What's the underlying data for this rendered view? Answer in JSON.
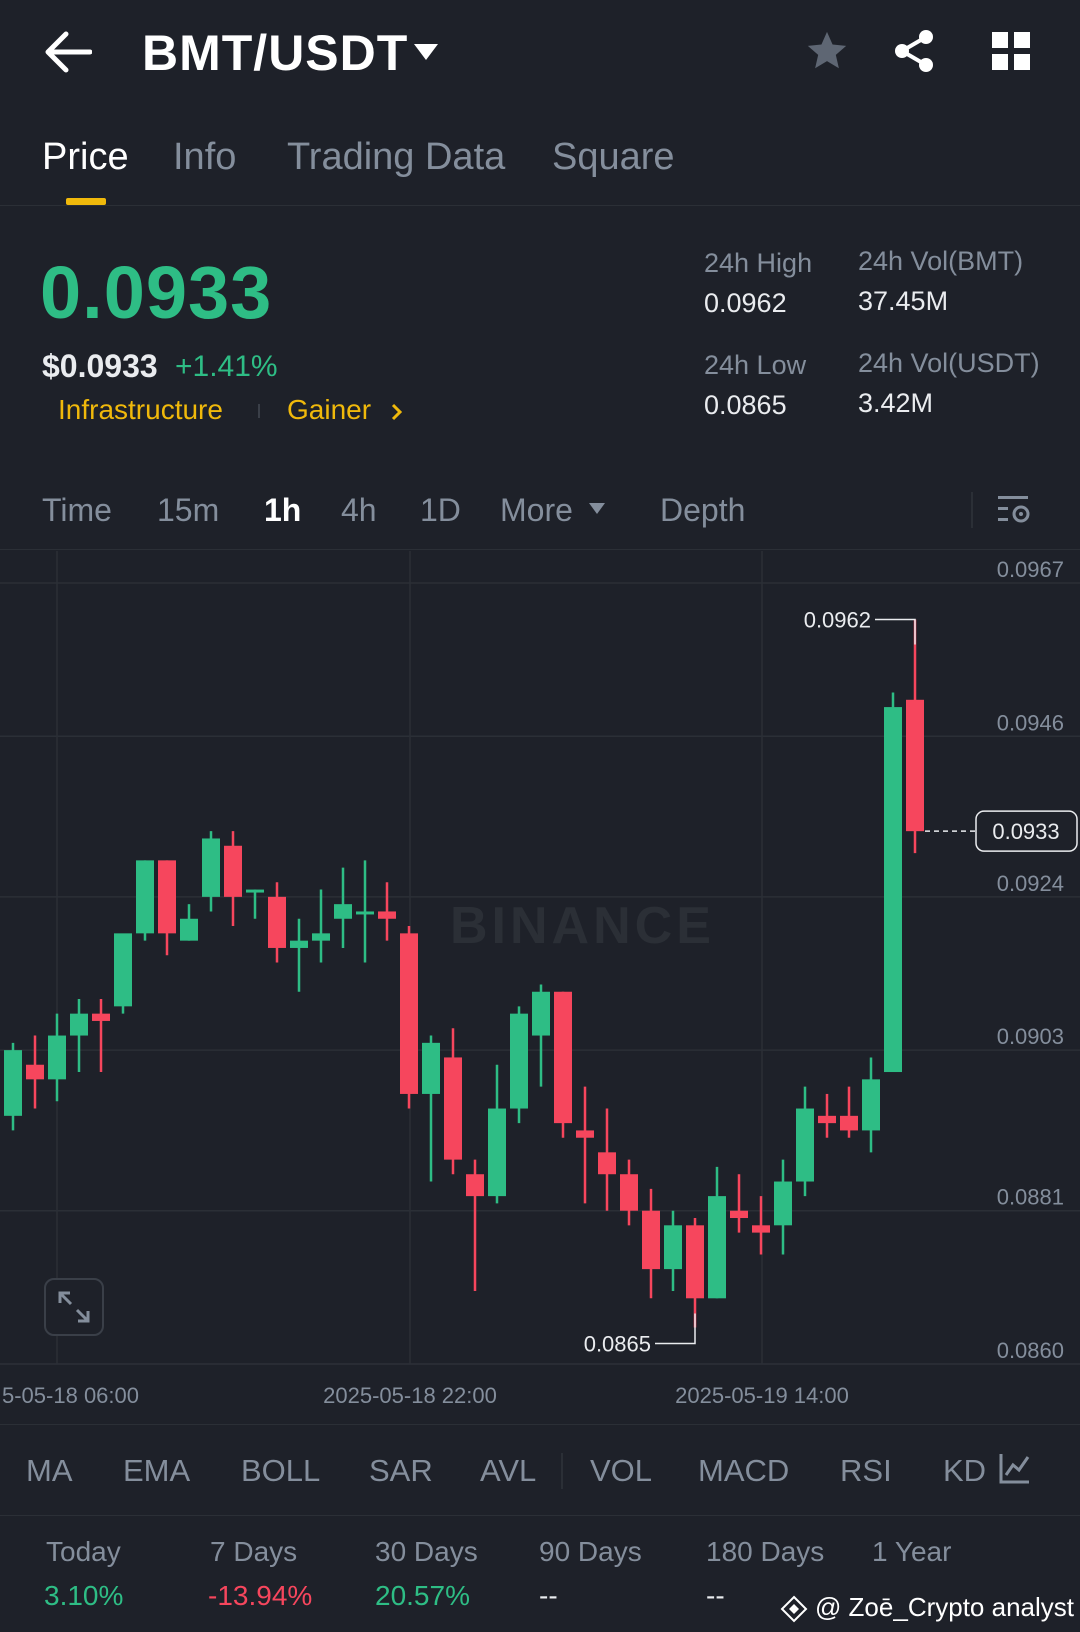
{
  "header": {
    "title": "BMT/USDT",
    "icons": [
      "back-arrow-icon",
      "chevron-down-icon",
      "star-icon",
      "share-icon",
      "grid-icon"
    ]
  },
  "tabs": [
    {
      "label": "Price",
      "active": true
    },
    {
      "label": "Info"
    },
    {
      "label": "Trading Data"
    },
    {
      "label": "Square"
    }
  ],
  "ticker": {
    "last_price": "0.0933",
    "usd_price": "$0.0933",
    "change_pct": "+1.41%",
    "tag1": "Infrastructure",
    "tag2": "Gainer",
    "high_label": "24h High",
    "high_value": "0.0962",
    "low_label": "24h Low",
    "low_value": "0.0865",
    "vol_base_label": "24h Vol(BMT)",
    "vol_base_value": "37.45M",
    "vol_quote_label": "24h Vol(USDT)",
    "vol_quote_value": "3.42M"
  },
  "timeframes": {
    "time": "Time",
    "m15": "15m",
    "h1": "1h",
    "h4": "4h",
    "d1": "1D",
    "more": "More",
    "depth": "Depth"
  },
  "chart_data": {
    "type": "candlestick",
    "watermark": "BINANCE",
    "y_ticks": [
      "0.0967",
      "0.0946",
      "0.0924",
      "0.0903",
      "0.0881",
      "0.0860"
    ],
    "ylim": [
      0.086,
      0.0967
    ],
    "x_ticks": [
      "5-05-18 06:00",
      "2025-05-18 22:00",
      "2025-05-19 14:00"
    ],
    "current_price_label": "0.0933",
    "high_marker": "0.0962",
    "low_marker": "0.0865",
    "candles": [
      {
        "o": 0.0894,
        "h": 0.0904,
        "l": 0.0892,
        "c": 0.0903
      },
      {
        "o": 0.0901,
        "h": 0.0905,
        "l": 0.0895,
        "c": 0.0899
      },
      {
        "o": 0.0899,
        "h": 0.0908,
        "l": 0.0896,
        "c": 0.0905
      },
      {
        "o": 0.0905,
        "h": 0.091,
        "l": 0.09,
        "c": 0.0908
      },
      {
        "o": 0.0908,
        "h": 0.091,
        "l": 0.09,
        "c": 0.0907
      },
      {
        "o": 0.0909,
        "h": 0.0918,
        "l": 0.0908,
        "c": 0.0919
      },
      {
        "o": 0.0919,
        "h": 0.0929,
        "l": 0.0918,
        "c": 0.0929
      },
      {
        "o": 0.0929,
        "h": 0.0929,
        "l": 0.0916,
        "c": 0.0919
      },
      {
        "o": 0.0918,
        "h": 0.0923,
        "l": 0.0918,
        "c": 0.0921
      },
      {
        "o": 0.0924,
        "h": 0.0933,
        "l": 0.0922,
        "c": 0.0932
      },
      {
        "o": 0.0931,
        "h": 0.0933,
        "l": 0.092,
        "c": 0.0924
      },
      {
        "o": 0.0925,
        "h": 0.0925,
        "l": 0.0921,
        "c": 0.0925
      },
      {
        "o": 0.0924,
        "h": 0.0926,
        "l": 0.0915,
        "c": 0.0917
      },
      {
        "o": 0.0917,
        "h": 0.0921,
        "l": 0.0911,
        "c": 0.0918
      },
      {
        "o": 0.0918,
        "h": 0.0925,
        "l": 0.0915,
        "c": 0.0919
      },
      {
        "o": 0.0921,
        "h": 0.0928,
        "l": 0.0917,
        "c": 0.0923
      },
      {
        "o": 0.0922,
        "h": 0.0929,
        "l": 0.0915,
        "c": 0.0922
      },
      {
        "o": 0.0922,
        "h": 0.0926,
        "l": 0.0918,
        "c": 0.0921
      },
      {
        "o": 0.0919,
        "h": 0.092,
        "l": 0.0895,
        "c": 0.0897
      },
      {
        "o": 0.0897,
        "h": 0.0905,
        "l": 0.0885,
        "c": 0.0904
      },
      {
        "o": 0.0902,
        "h": 0.0906,
        "l": 0.0886,
        "c": 0.0888
      },
      {
        "o": 0.0886,
        "h": 0.0888,
        "l": 0.087,
        "c": 0.0883
      },
      {
        "o": 0.0883,
        "h": 0.0901,
        "l": 0.0882,
        "c": 0.0895
      },
      {
        "o": 0.0895,
        "h": 0.0909,
        "l": 0.0893,
        "c": 0.0908
      },
      {
        "o": 0.0905,
        "h": 0.0912,
        "l": 0.0898,
        "c": 0.0911
      },
      {
        "o": 0.0911,
        "h": 0.0911,
        "l": 0.0891,
        "c": 0.0893
      },
      {
        "o": 0.0892,
        "h": 0.0898,
        "l": 0.0882,
        "c": 0.0891
      },
      {
        "o": 0.0889,
        "h": 0.0895,
        "l": 0.0881,
        "c": 0.0886
      },
      {
        "o": 0.0886,
        "h": 0.0888,
        "l": 0.0879,
        "c": 0.0881
      },
      {
        "o": 0.0881,
        "h": 0.0884,
        "l": 0.0869,
        "c": 0.0873
      },
      {
        "o": 0.0873,
        "h": 0.0881,
        "l": 0.087,
        "c": 0.0879
      },
      {
        "o": 0.0879,
        "h": 0.088,
        "l": 0.0865,
        "c": 0.0869
      },
      {
        "o": 0.0869,
        "h": 0.0887,
        "l": 0.0869,
        "c": 0.0883
      },
      {
        "o": 0.0881,
        "h": 0.0886,
        "l": 0.0878,
        "c": 0.088
      },
      {
        "o": 0.0879,
        "h": 0.0883,
        "l": 0.0875,
        "c": 0.0878
      },
      {
        "o": 0.0879,
        "h": 0.0888,
        "l": 0.0875,
        "c": 0.0885
      },
      {
        "o": 0.0885,
        "h": 0.0898,
        "l": 0.0883,
        "c": 0.0895
      },
      {
        "o": 0.0894,
        "h": 0.0897,
        "l": 0.0891,
        "c": 0.0893
      },
      {
        "o": 0.0894,
        "h": 0.0898,
        "l": 0.0891,
        "c": 0.0892
      },
      {
        "o": 0.0892,
        "h": 0.0902,
        "l": 0.0889,
        "c": 0.0899
      },
      {
        "o": 0.09,
        "h": 0.0952,
        "l": 0.09,
        "c": 0.095
      },
      {
        "o": 0.0951,
        "h": 0.0962,
        "l": 0.093,
        "c": 0.0933
      }
    ]
  },
  "indicators": [
    "MA",
    "EMA",
    "BOLL",
    "SAR",
    "AVL",
    "VOL",
    "MACD",
    "RSI",
    "KD"
  ],
  "performance": [
    {
      "label": "Today",
      "value": "3.10%",
      "color": "#2ebd85"
    },
    {
      "label": "7 Days",
      "value": "-13.94%",
      "color": "#f6465d"
    },
    {
      "label": "30 Days",
      "value": "20.57%",
      "color": "#2ebd85"
    },
    {
      "label": "90 Days",
      "value": "--",
      "color": "#eaecef"
    },
    {
      "label": "180 Days",
      "value": "--",
      "color": "#eaecef"
    },
    {
      "label": "1 Year",
      "value": "",
      "color": "#eaecef"
    }
  ],
  "watermark_text": "@ Zoē_Crypto analyst",
  "colors": {
    "up": "#2ebd85",
    "down": "#f6465d",
    "accent": "#f0b90b",
    "bg": "#1e2129"
  }
}
